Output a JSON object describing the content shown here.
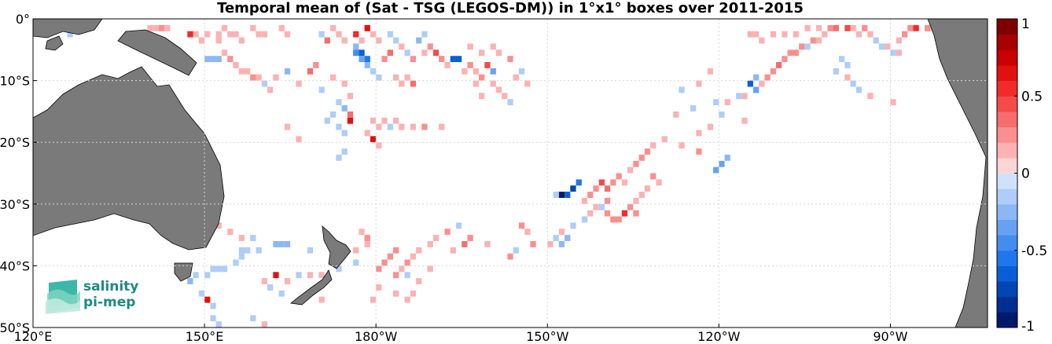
{
  "chart_data": {
    "type": "heatmap",
    "title": "Temporal mean of (Sat - TSG (LEGOS-DM)) in 1°x1° boxes over 2011-2015",
    "x_ticks": [
      "120°E",
      "150°E",
      "180°W",
      "150°W",
      "120°W",
      "90°W"
    ],
    "x_tick_values": [
      120,
      150,
      180,
      210,
      240,
      270
    ],
    "y_ticks": [
      "0°",
      "10°S",
      "20°S",
      "30°S",
      "40°S",
      "50°S"
    ],
    "y_tick_values": [
      0,
      -10,
      -20,
      -30,
      -40,
      -50
    ],
    "xlim": [
      120,
      287
    ],
    "ylim": [
      -50,
      0
    ],
    "grid": true,
    "colorbar": {
      "range": [
        -1,
        1
      ],
      "ticks": [
        "1",
        "0.5",
        "0",
        "-0.5",
        "-1"
      ],
      "tick_values": [
        1,
        0.5,
        0,
        -0.5,
        -1
      ],
      "levels": 20
    },
    "cells": [
      [
        140,
        -1,
        0.2
      ],
      [
        141,
        -1,
        0.2
      ],
      [
        142,
        -1,
        0.25
      ],
      [
        143,
        -1,
        0.2
      ],
      [
        148,
        -2,
        0.2
      ],
      [
        147,
        -2,
        0.6
      ],
      [
        150,
        -2,
        0.15
      ],
      [
        149,
        -3,
        0.2
      ],
      [
        152,
        -3,
        0.2
      ],
      [
        154,
        -2,
        0.2
      ],
      [
        155,
        -2,
        0.2
      ],
      [
        156,
        -3,
        0.15
      ],
      [
        158,
        -1,
        0.2
      ],
      [
        159,
        -2,
        0.15
      ],
      [
        160,
        -2,
        0.2
      ],
      [
        163,
        -1,
        0.15
      ],
      [
        164,
        -2,
        0.15
      ],
      [
        170,
        -2,
        -0.2
      ],
      [
        171,
        -3,
        0.35
      ],
      [
        172,
        -1,
        0.2
      ],
      [
        173,
        -2,
        0.15
      ],
      [
        174,
        -3,
        0.2
      ],
      [
        176,
        -2,
        0.55
      ],
      [
        177,
        -3,
        0.2
      ],
      [
        178,
        -1,
        0.7
      ],
      [
        179,
        -2,
        0.2
      ],
      [
        180,
        -3,
        0.2
      ],
      [
        182,
        -2,
        -0.2
      ],
      [
        183,
        -3,
        -0.15
      ],
      [
        184,
        -4,
        0.2
      ],
      [
        185,
        -5,
        -0.2
      ],
      [
        186,
        -6,
        0.25
      ],
      [
        188,
        -5,
        0.2
      ],
      [
        187,
        -3,
        -0.25
      ],
      [
        188,
        -2,
        -0.15
      ],
      [
        189,
        -4,
        0.3
      ],
      [
        190,
        -5,
        0.5
      ],
      [
        191,
        -6,
        0.25
      ],
      [
        193,
        -6,
        -0.7
      ],
      [
        194,
        -6,
        -0.7
      ],
      [
        192,
        -7,
        0.2
      ],
      [
        195,
        -8,
        0.2
      ],
      [
        196,
        -7,
        0.3
      ],
      [
        197,
        -8,
        0.2
      ],
      [
        198,
        -9,
        0.25
      ],
      [
        199,
        -7,
        0.5
      ],
      [
        200,
        -8,
        -0.4
      ],
      [
        200,
        -10,
        0.2
      ],
      [
        201,
        -11,
        0.15
      ],
      [
        202,
        -12,
        0.2
      ],
      [
        203,
        -13,
        -0.2
      ],
      [
        197,
        -10,
        0.2
      ],
      [
        198,
        -12,
        0.2
      ],
      [
        176,
        -4,
        -0.25
      ],
      [
        176,
        -5,
        -0.5
      ],
      [
        177,
        -5,
        -0.7
      ],
      [
        178,
        -6,
        -0.6
      ],
      [
        177,
        -6,
        -0.35
      ],
      [
        178,
        -7,
        -0.25
      ],
      [
        179,
        -8,
        -0.2
      ],
      [
        180,
        -9,
        -0.2
      ],
      [
        181,
        -6,
        0.3
      ],
      [
        182,
        -5,
        0.4
      ],
      [
        183,
        -9,
        0.15
      ],
      [
        184,
        -10,
        0.2
      ],
      [
        185,
        -9,
        0.2
      ],
      [
        186,
        -10,
        0.4
      ],
      [
        169,
        -7,
        0.25
      ],
      [
        168,
        -8,
        0.4
      ],
      [
        172,
        -9,
        0.2
      ],
      [
        174,
        -10,
        0.2
      ],
      [
        175,
        -12,
        0.15
      ],
      [
        170,
        -11,
        -0.2
      ],
      [
        173,
        -13,
        -0.2
      ],
      [
        172,
        -15,
        -0.2
      ],
      [
        171,
        -16,
        -0.2
      ],
      [
        173,
        -17,
        -0.15
      ],
      [
        174,
        -18,
        -0.2
      ],
      [
        174,
        -21,
        -0.15
      ],
      [
        173,
        -22,
        -0.2
      ],
      [
        174,
        -14,
        -0.3
      ],
      [
        175,
        -15,
        0.4
      ],
      [
        175,
        -16,
        0.7
      ],
      [
        150,
        -6,
        -0.3
      ],
      [
        151,
        -6,
        -0.3
      ],
      [
        152,
        -6,
        -0.3
      ],
      [
        153,
        -5,
        0.2
      ],
      [
        154,
        -6,
        0.25
      ],
      [
        155,
        -7,
        0.2
      ],
      [
        156,
        -8,
        0.2
      ],
      [
        157,
        -8,
        0.2
      ],
      [
        158,
        -9,
        0.25
      ],
      [
        159,
        -9,
        0.2
      ],
      [
        160,
        -10,
        -0.2
      ],
      [
        162,
        -9,
        0.2
      ],
      [
        164,
        -8,
        -0.25
      ],
      [
        161,
        -11,
        0.15
      ],
      [
        166,
        -10,
        0.2
      ],
      [
        179,
        -16,
        0.2
      ],
      [
        180,
        -17,
        0.2
      ],
      [
        181,
        -16,
        0.2
      ],
      [
        182,
        -17,
        -0.2
      ],
      [
        183,
        -16,
        0.2
      ],
      [
        184,
        -17,
        0.2
      ],
      [
        186,
        -17,
        0.2
      ],
      [
        188,
        -17,
        0.25
      ],
      [
        191,
        -17,
        0.2
      ],
      [
        178,
        -18,
        0.2
      ],
      [
        179,
        -19,
        0.7
      ],
      [
        180,
        -20,
        0.2
      ],
      [
        164,
        -17,
        0.15
      ],
      [
        166,
        -19,
        0.2
      ],
      [
        152,
        -2,
        0.2
      ],
      [
        153,
        -1,
        0.15
      ],
      [
        126,
        -2,
        -0.15
      ],
      [
        217,
        -28,
        0.25
      ],
      [
        218,
        -27,
        0.3
      ],
      [
        219,
        -26,
        0.5
      ],
      [
        220,
        -27,
        0.4
      ],
      [
        221,
        -26,
        0.3
      ],
      [
        222,
        -25,
        0.25
      ],
      [
        223,
        -26,
        0.2
      ],
      [
        224,
        -24,
        0.2
      ],
      [
        225,
        -23,
        0.25
      ],
      [
        226,
        -22,
        0.25
      ],
      [
        227,
        -21,
        0.3
      ],
      [
        228,
        -25,
        0.3
      ],
      [
        229,
        -26,
        0.2
      ],
      [
        227,
        -27,
        0.2
      ],
      [
        226,
        -28,
        0.2
      ],
      [
        225,
        -29,
        0.2
      ],
      [
        215,
        -26,
        -0.55
      ],
      [
        214,
        -27,
        -0.8
      ],
      [
        213,
        -28,
        -0.65
      ],
      [
        212,
        -28,
        -1.0
      ],
      [
        211,
        -28,
        -0.15
      ],
      [
        216,
        -29,
        0.2
      ],
      [
        218,
        -30,
        0.2
      ],
      [
        220,
        -31,
        0.3
      ],
      [
        222,
        -32,
        0.3
      ],
      [
        223,
        -31,
        0.6
      ],
      [
        224,
        -30,
        0.3
      ],
      [
        225,
        -31,
        0.25
      ],
      [
        221,
        -32,
        0.25
      ],
      [
        220,
        -29,
        0.3
      ],
      [
        219,
        -30,
        -0.15
      ],
      [
        217,
        -31,
        0.2
      ],
      [
        216,
        -32,
        -0.2
      ],
      [
        214,
        -33,
        -0.2
      ],
      [
        212,
        -34,
        0.2
      ],
      [
        211,
        -35,
        -0.2
      ],
      [
        210,
        -36,
        0.2
      ],
      [
        212,
        -36,
        -0.3
      ],
      [
        213,
        -35,
        -0.3
      ],
      [
        205,
        -33,
        0.25
      ],
      [
        206,
        -34,
        0.2
      ],
      [
        204,
        -37,
        -0.2
      ],
      [
        207,
        -36,
        0.25
      ],
      [
        203,
        -38,
        0.3
      ],
      [
        199,
        -36,
        0.2
      ],
      [
        196,
        -35,
        0.25
      ],
      [
        195,
        -36,
        0.35
      ],
      [
        193,
        -37,
        0.2
      ],
      [
        194,
        -33,
        -0.15
      ],
      [
        192,
        -34,
        0.25
      ],
      [
        190,
        -35,
        0.2
      ],
      [
        189,
        -36,
        0.2
      ],
      [
        187,
        -37,
        0.2
      ],
      [
        186,
        -38,
        0.2
      ],
      [
        185,
        -39,
        0.25
      ],
      [
        184,
        -40,
        0.2
      ],
      [
        183,
        -41,
        0.25
      ],
      [
        185,
        -41,
        -0.15
      ],
      [
        187,
        -42,
        0.2
      ],
      [
        189,
        -40,
        0.15
      ],
      [
        186,
        -44,
        0.2
      ],
      [
        185,
        -45,
        0.15
      ],
      [
        183,
        -44,
        0.2
      ],
      [
        183,
        -37,
        0.3
      ],
      [
        182,
        -38,
        0.25
      ],
      [
        181,
        -39,
        0.25
      ],
      [
        180,
        -40,
        0.25
      ],
      [
        180,
        -43,
        0.2
      ],
      [
        179,
        -45,
        0.2
      ],
      [
        177,
        -34,
        0.2
      ],
      [
        178,
        -35,
        0.25
      ],
      [
        178,
        -36,
        0.2
      ],
      [
        176,
        -37,
        0.2
      ],
      [
        176,
        -39,
        -0.2
      ],
      [
        173,
        -40,
        -0.2
      ],
      [
        170,
        -41,
        0.2
      ],
      [
        168,
        -41,
        0.2
      ],
      [
        166,
        -41,
        -0.15
      ],
      [
        164,
        -42,
        0.2
      ],
      [
        162,
        -41,
        0.7
      ],
      [
        160,
        -42,
        0.2
      ],
      [
        159,
        -37,
        -0.2
      ],
      [
        157,
        -37,
        -0.2
      ],
      [
        156,
        -38,
        -0.2
      ],
      [
        155,
        -39,
        -0.2
      ],
      [
        153,
        -40,
        -0.2
      ],
      [
        152,
        -40,
        -0.2
      ],
      [
        151,
        -40,
        -0.15
      ],
      [
        150,
        -41,
        -0.2
      ],
      [
        148,
        -41,
        -0.2
      ],
      [
        147,
        -42,
        -0.25
      ],
      [
        149,
        -44,
        -0.2
      ],
      [
        150,
        -45,
        0.7
      ],
      [
        151,
        -46,
        -0.2
      ],
      [
        151,
        -48,
        -0.2
      ],
      [
        152,
        -49,
        -0.15
      ],
      [
        160,
        -49,
        0.2
      ],
      [
        158,
        -48,
        -0.2
      ],
      [
        149,
        -50,
        -0.15
      ],
      [
        158,
        -35,
        -0.2
      ],
      [
        162,
        -36,
        -0.25
      ],
      [
        163,
        -36,
        -0.25
      ],
      [
        164,
        -36,
        -0.25
      ],
      [
        168,
        -37,
        -0.2
      ],
      [
        152,
        -33,
        0.2
      ],
      [
        154,
        -34,
        0.2
      ],
      [
        156,
        -35,
        0.2
      ],
      [
        156,
        -37,
        -0.15
      ],
      [
        161,
        -43,
        -0.2
      ],
      [
        163,
        -44,
        -0.2
      ],
      [
        170,
        -45,
        0.2
      ],
      [
        233,
        -11,
        -0.15
      ],
      [
        235,
        -14,
        -0.2
      ],
      [
        232,
        -15,
        0.15
      ],
      [
        240,
        -15,
        -0.2
      ],
      [
        239,
        -13,
        -0.15
      ],
      [
        241,
        -13,
        0.2
      ],
      [
        244,
        -12,
        0.2
      ],
      [
        245,
        -10,
        -0.7
      ],
      [
        246,
        -11,
        -0.35
      ],
      [
        246,
        -9,
        -0.3
      ],
      [
        247,
        -10,
        0.2
      ],
      [
        248,
        -9,
        0.25
      ],
      [
        249,
        -8,
        0.3
      ],
      [
        250,
        -7,
        0.35
      ],
      [
        251,
        -6,
        0.3
      ],
      [
        252,
        -5,
        0.25
      ],
      [
        253,
        -5,
        0.3
      ],
      [
        254,
        -4,
        0.3
      ],
      [
        255,
        -4,
        -0.2
      ],
      [
        256,
        -3,
        0.25
      ],
      [
        257,
        -3,
        0.2
      ],
      [
        258,
        -2,
        0.2
      ],
      [
        259,
        -1,
        0.3
      ],
      [
        260,
        -1,
        0.4
      ],
      [
        262,
        -1,
        0.5
      ],
      [
        263,
        -1,
        0.2
      ],
      [
        264,
        -2,
        0.2
      ],
      [
        265,
        -1,
        0.3
      ],
      [
        266,
        -2,
        0.2
      ],
      [
        267,
        -3,
        -0.15
      ],
      [
        268,
        -4,
        -0.2
      ],
      [
        269,
        -4,
        0.2
      ],
      [
        270,
        -5,
        -0.2
      ],
      [
        271,
        -5,
        0.2
      ],
      [
        271,
        -3,
        0.2
      ],
      [
        272,
        -2,
        0.25
      ],
      [
        273,
        -1,
        0.3
      ],
      [
        274,
        -1,
        0.6
      ],
      [
        276,
        -1,
        0.3
      ],
      [
        277,
        -1,
        0.2
      ],
      [
        278,
        -1,
        0.7
      ],
      [
        261,
        -6,
        -0.2
      ],
      [
        262,
        -7,
        -0.15
      ],
      [
        260,
        -8,
        -0.2
      ],
      [
        262,
        -9,
        0.2
      ],
      [
        263,
        -10,
        -0.2
      ],
      [
        264,
        -11,
        -0.15
      ],
      [
        266,
        -12,
        0.2
      ],
      [
        270,
        -13,
        0.2
      ],
      [
        236,
        -10,
        0.2
      ],
      [
        238,
        -8,
        0.2
      ],
      [
        243,
        -12,
        -0.2
      ],
      [
        244,
        -16,
        0.2
      ],
      [
        236,
        -18,
        0.2
      ],
      [
        238,
        -17,
        0.2
      ],
      [
        245,
        -2,
        0.2
      ],
      [
        246,
        -2,
        0.2
      ],
      [
        247,
        -3,
        0.2
      ],
      [
        249,
        -2,
        0.15
      ],
      [
        251,
        -2,
        0.2
      ],
      [
        253,
        -2,
        0.2
      ],
      [
        255,
        -1,
        0.2
      ],
      [
        257,
        -1,
        0.15
      ],
      [
        239,
        -24,
        -0.4
      ],
      [
        240,
        -23,
        -0.4
      ],
      [
        241,
        -22,
        -0.3
      ],
      [
        236,
        -21,
        0.25
      ],
      [
        233,
        -20,
        0.2
      ],
      [
        230,
        -19,
        0.2
      ],
      [
        228,
        -20,
        0.2
      ],
      [
        205,
        -8,
        -0.2
      ],
      [
        204,
        -9,
        0.2
      ],
      [
        206,
        -10,
        0.2
      ],
      [
        203,
        -6,
        0.25
      ],
      [
        201,
        -5,
        0.2
      ],
      [
        200,
        -4,
        0.2
      ],
      [
        198,
        -5,
        0.2
      ],
      [
        196,
        -4,
        0.2
      ]
    ]
  },
  "logo": {
    "line1": "salinity",
    "line2": "pi-mep"
  }
}
